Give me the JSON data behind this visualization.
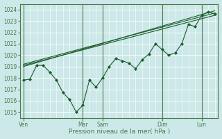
{
  "background_color": "#cce8e8",
  "grid_color": "#b0d0d0",
  "line_color": "#1a5c2a",
  "marker_color": "#1a5c2a",
  "xlabel": "Pression niveau de la mer( hPa )",
  "ylim": [
    1014.5,
    1024.5
  ],
  "yticks": [
    1015,
    1016,
    1017,
    1018,
    1019,
    1020,
    1021,
    1022,
    1023,
    1024
  ],
  "xtick_labels": [
    "Ven",
    "Mar",
    "Sam",
    "Dim",
    "Lun"
  ],
  "xtick_positions": [
    0,
    9,
    12,
    21,
    27
  ],
  "n_points": 30,
  "vline_color": "#4a7a4a",
  "series_main": [
    1017.8,
    1017.9,
    1019.1,
    1019.1,
    1018.5,
    1017.8,
    1016.7,
    1016.1,
    1015.0,
    1015.6,
    1017.8,
    1017.2,
    1018.0,
    1019.0,
    1019.7,
    1019.5,
    1019.3,
    1018.8,
    1019.6,
    1020.1,
    1021.0,
    1020.5,
    1020.0,
    1020.2,
    1021.0,
    1022.7,
    1022.5,
    1023.5,
    1023.8,
    1023.6
  ],
  "series_trend1": [
    [
      0,
      1019.0
    ],
    [
      29,
      1023.9
    ]
  ],
  "series_trend2": [
    [
      0,
      1019.1
    ],
    [
      29,
      1023.5
    ]
  ],
  "series_trend3": [
    [
      0,
      1019.2
    ],
    [
      29,
      1023.7
    ]
  ]
}
